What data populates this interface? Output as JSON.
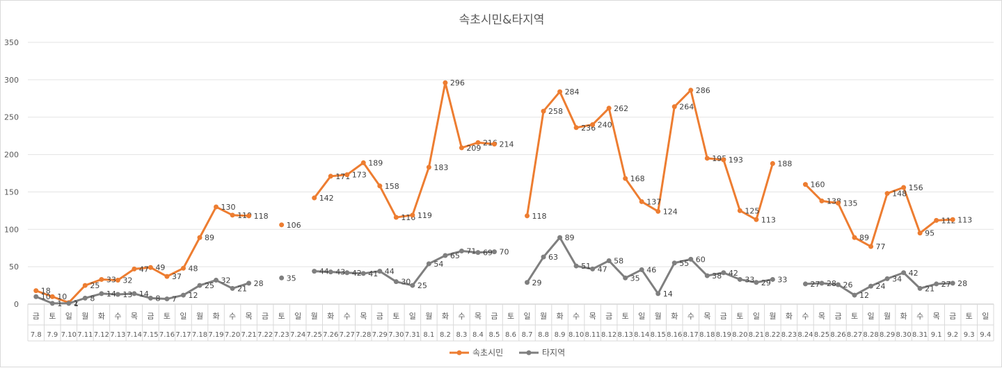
{
  "chart_data": {
    "type": "line",
    "title": "속초시민&타지역",
    "ylim": [
      0,
      350
    ],
    "yticks": [
      0,
      50,
      100,
      150,
      200,
      250,
      300,
      350
    ],
    "grid": true,
    "legend_position": "bottom",
    "days": [
      "금",
      "토",
      "일",
      "월",
      "화",
      "수",
      "목",
      "금",
      "토",
      "일",
      "월",
      "화",
      "수",
      "목",
      "금",
      "토",
      "일",
      "월",
      "화",
      "수",
      "목",
      "금",
      "토",
      "일",
      "월",
      "화",
      "수",
      "목",
      "금",
      "토",
      "일",
      "월",
      "화",
      "수",
      "목",
      "금",
      "토",
      "일",
      "월",
      "화",
      "수",
      "목",
      "금",
      "토",
      "일",
      "월",
      "화",
      "수",
      "목",
      "금",
      "토",
      "일",
      "월",
      "화",
      "수",
      "목",
      "금",
      "토",
      "일"
    ],
    "categories": [
      "7.8",
      "7.9",
      "7.10",
      "7.11",
      "7.12",
      "7.13",
      "7.14",
      "7.15",
      "7.16",
      "7.17",
      "7.18",
      "7.19",
      "7.20",
      "7.21",
      "7.22",
      "7.23",
      "7.24",
      "7.25",
      "7.26",
      "7.27",
      "7.28",
      "7.29",
      "7.30",
      "7.31",
      "8.1",
      "8.2",
      "8.3",
      "8.4",
      "8.5",
      "8.6",
      "8.7",
      "8.8",
      "8.9",
      "8.10",
      "8.11",
      "8.12",
      "8.13",
      "8.14",
      "8.15",
      "8.16",
      "8.17",
      "8.18",
      "8.19",
      "8.20",
      "8.21",
      "8.22",
      "8.23",
      "8.24",
      "8.25",
      "8.26",
      "8.27",
      "8.28",
      "8.29",
      "8.30",
      "8.31",
      "9.1",
      "9.2",
      "9.3",
      "9.4"
    ],
    "series": [
      {
        "name": "속초시민",
        "color": "#ED7D31",
        "values": [
          18,
          10,
          2,
          25,
          33,
          32,
          47,
          49,
          37,
          48,
          89,
          130,
          119,
          118,
          null,
          106,
          null,
          142,
          171,
          173,
          189,
          158,
          116,
          119,
          183,
          296,
          209,
          216,
          214,
          null,
          118,
          258,
          284,
          236,
          240,
          262,
          168,
          137,
          124,
          264,
          286,
          195,
          193,
          125,
          113,
          188,
          null,
          160,
          138,
          135,
          89,
          77,
          148,
          156,
          95,
          112,
          113,
          null,
          null
        ]
      },
      {
        "name": "타지역",
        "color": "#7F7F7F",
        "values": [
          10,
          1,
          1,
          8,
          14,
          13,
          14,
          8,
          7,
          12,
          25,
          32,
          21,
          28,
          null,
          35,
          null,
          44,
          43,
          42,
          41,
          44,
          30,
          25,
          54,
          65,
          71,
          69,
          70,
          null,
          29,
          63,
          89,
          51,
          47,
          58,
          35,
          46,
          14,
          55,
          60,
          38,
          42,
          33,
          29,
          33,
          null,
          27,
          28,
          26,
          12,
          24,
          34,
          42,
          21,
          27,
          28,
          null,
          null
        ]
      }
    ]
  }
}
